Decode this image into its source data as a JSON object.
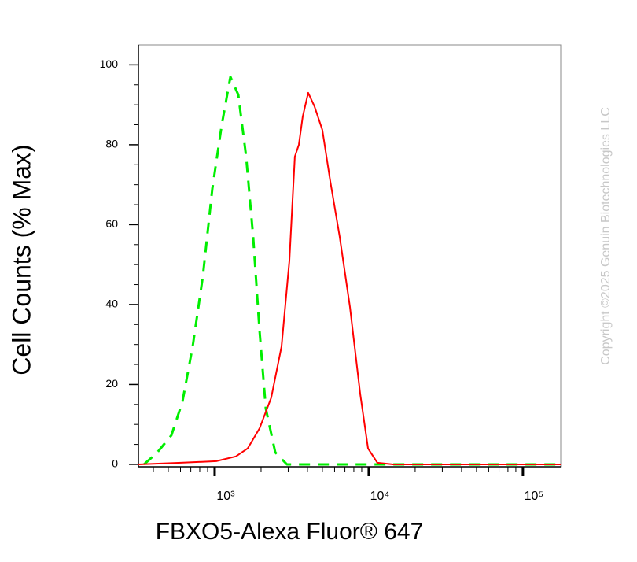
{
  "chart_data": {
    "type": "line",
    "x_label": "FBXO5-Alexa Fluor® 647",
    "y_label": "Cell Counts (% Max)",
    "copyright": "Copyright ©2025 Genuin Biotechnologies LLC",
    "x_log": true,
    "xlim": [
      320,
      176000
    ],
    "ylim": [
      -0.6,
      105
    ],
    "xticks": [
      {
        "value": 1000,
        "label": "10³"
      },
      {
        "value": 10000,
        "label": "10⁴"
      },
      {
        "value": 100000,
        "label": "10⁵"
      }
    ],
    "xminorticks": [
      400,
      500,
      600,
      700,
      800,
      900,
      2000,
      3000,
      4000,
      5000,
      6000,
      7000,
      8000,
      9000,
      20000,
      30000,
      40000,
      50000,
      60000,
      70000,
      80000,
      90000
    ],
    "yticks": [
      0,
      20,
      40,
      60,
      80,
      100
    ],
    "yminorticks": [
      5,
      10,
      15,
      25,
      30,
      35,
      45,
      50,
      55,
      65,
      70,
      75,
      85,
      90,
      95
    ],
    "series": [
      {
        "color": "#00ee00",
        "dashed": true,
        "x": [
          348,
          425,
          524,
          618,
          720,
          838,
          966,
          1112,
          1265,
          1423,
          1600,
          1778,
          1954,
          2148,
          2472,
          2944,
          10000,
          176000
        ],
        "values": [
          0,
          3,
          7.3,
          15.7,
          29.5,
          47,
          69,
          85,
          97,
          92.5,
          77,
          57,
          33.5,
          14,
          3,
          0,
          0,
          0
        ]
      },
      {
        "color": "#ff0000",
        "dashed": false,
        "x": [
          320,
          604,
          1023,
          1374,
          1637,
          1954,
          2328,
          2716,
          3053,
          3313,
          3516,
          3725,
          4046,
          4446,
          5000,
          5623,
          6471,
          7548,
          8797,
          9886,
          11380,
          14400,
          176000
        ],
        "values": [
          0,
          0.4,
          0.8,
          2,
          4,
          9,
          16.7,
          29.5,
          51,
          77,
          80,
          87,
          93,
          89.6,
          83.7,
          71,
          57,
          39.4,
          17.7,
          4,
          0.4,
          0,
          0
        ]
      }
    ]
  }
}
